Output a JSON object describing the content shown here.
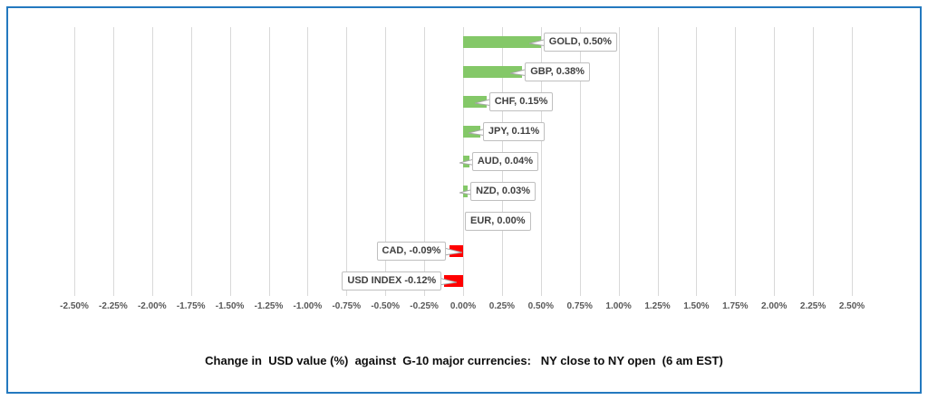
{
  "chart_data": {
    "type": "bar",
    "orientation": "horizontal",
    "title": "Change in  USD value (%)  against  G-10 major currencies:   NY close to NY open  (6 am EST)",
    "categories": [
      "GOLD",
      "GBP",
      "CHF",
      "JPY",
      "AUD",
      "NZD",
      "EUR",
      "CAD",
      "USD INDEX"
    ],
    "values": [
      0.5,
      0.38,
      0.15,
      0.11,
      0.04,
      0.03,
      0.0,
      -0.09,
      -0.12
    ],
    "data_labels": [
      "GOLD, 0.50%",
      "GBP, 0.38%",
      "CHF, 0.15%",
      "JPY, 0.11%",
      "AUD, 0.04%",
      "NZD, 0.03%",
      "EUR, 0.00%",
      "CAD, -0.09%",
      "USD INDEX -0.12%"
    ],
    "x_tick_labels": [
      "-2.50%",
      "-2.25%",
      "-2.00%",
      "-1.75%",
      "-1.50%",
      "-1.25%",
      "-1.00%",
      "-0.75%",
      "-0.50%",
      "-0.25%",
      "0.00%",
      "0.25%",
      "0.50%",
      "0.75%",
      "1.00%",
      "1.25%",
      "1.50%",
      "1.75%",
      "2.00%",
      "2.25%",
      "2.50%"
    ],
    "xlim": [
      -2.5,
      2.5
    ],
    "x_tick_step": 0.25,
    "grid": "vertical",
    "legend": "none",
    "colors": {
      "positive_bar": "#84C868",
      "negative_bar": "#FF0000",
      "gridline": "#D9D9D9",
      "frame_border": "#2479BF",
      "label_border": "#BFBFBF",
      "label_text": "#404040",
      "axis_text": "#595959",
      "wedge_stroke": "#A6A6A6"
    }
  }
}
